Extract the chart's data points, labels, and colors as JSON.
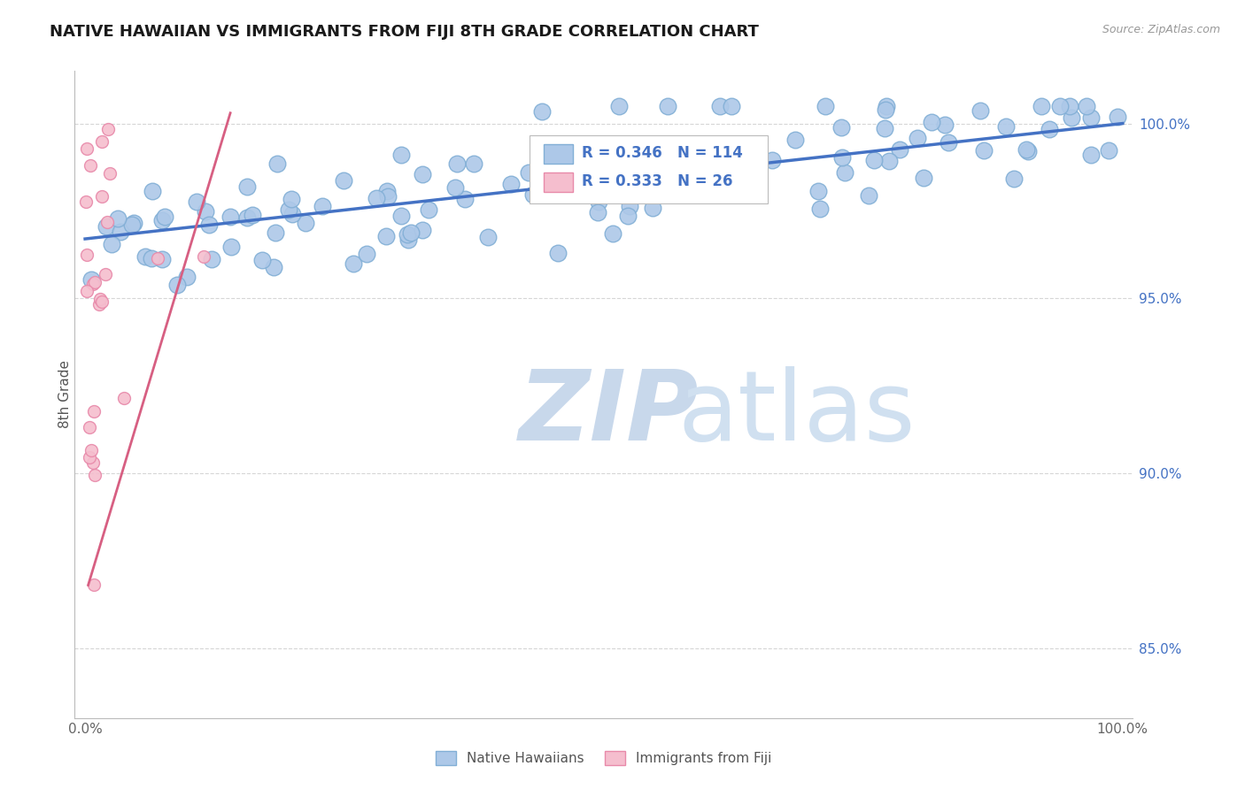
{
  "title": "NATIVE HAWAIIAN VS IMMIGRANTS FROM FIJI 8TH GRADE CORRELATION CHART",
  "source_text": "Source: ZipAtlas.com",
  "ylabel": "8th Grade",
  "right_yticks": [
    85.0,
    90.0,
    95.0,
    100.0
  ],
  "right_ytick_labels": [
    "85.0%",
    "90.0%",
    "95.0%",
    "100.0%"
  ],
  "legend_r_blue": "R = 0.346",
  "legend_n_blue": "N = 114",
  "legend_r_pink": "R = 0.333",
  "legend_n_pink": "N = 26",
  "legend_label_blue": "Native Hawaiians",
  "legend_label_pink": "Immigrants from Fiji",
  "blue_color": "#adc8e8",
  "blue_edge_color": "#82afd6",
  "pink_color": "#f5bece",
  "pink_edge_color": "#e88aaa",
  "trend_blue_color": "#4472c4",
  "trend_pink_color": "#d75f82",
  "watermark_zip_color": "#c8d8eb",
  "watermark_atlas_color": "#d0e0f0",
  "background_color": "#ffffff",
  "grid_color": "#cccccc",
  "title_color": "#1a1a1a",
  "right_axis_color": "#4472c4",
  "ylim_min": 83.0,
  "ylim_max": 101.5,
  "xlim_min": -1.0,
  "xlim_max": 101.0,
  "blue_trend_x0": 0.0,
  "blue_trend_y0": 96.7,
  "blue_trend_x1": 100.0,
  "blue_trend_y1": 100.0,
  "pink_trend_x0": 0.3,
  "pink_trend_y0": 86.8,
  "pink_trend_x1": 14.0,
  "pink_trend_y1": 100.3,
  "blue_dot_size": 180,
  "pink_dot_size": 100
}
